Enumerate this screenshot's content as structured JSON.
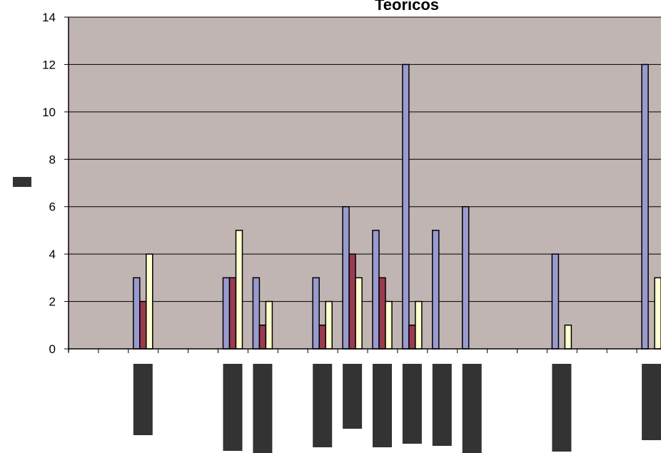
{
  "colors": {
    "plot_area": "#c0b5b2",
    "gridline": "#000000",
    "series_1": "#9a9acf",
    "series_2": "#9a3b50",
    "series_3": "#ffffd0",
    "redacted_label": "#333333"
  },
  "chart_data": {
    "type": "bar",
    "title": "Teóricos",
    "title_visible_fragment": "Teoricos",
    "xlabel": "",
    "ylabel": "",
    "ylim": [
      0,
      14
    ],
    "yticks": [
      0,
      2,
      4,
      6,
      8,
      10,
      12,
      14
    ],
    "yticks_labels": [
      "0",
      "2",
      "4",
      "6",
      "8",
      "10",
      "12",
      "14"
    ],
    "grid": "horizontal",
    "categories_note": "category labels are obscured by dark blocks in the original",
    "series": [
      {
        "color": "#9a9acf",
        "values": [
          0,
          0,
          3,
          0,
          0,
          3,
          3,
          0,
          3,
          6,
          5,
          12,
          5,
          6,
          0,
          0,
          4,
          0,
          0,
          12
        ]
      },
      {
        "color": "#9a3b50",
        "values": [
          0,
          0,
          2,
          0,
          0,
          3,
          1,
          0,
          1,
          4,
          3,
          1,
          0,
          0,
          0,
          0,
          0,
          0,
          0,
          0
        ]
      },
      {
        "color": "#ffffd0",
        "values": [
          0,
          0,
          4,
          0,
          0,
          5,
          2,
          0,
          2,
          3,
          2,
          2,
          0,
          0,
          0,
          0,
          1,
          0,
          0,
          3
        ]
      }
    ]
  }
}
